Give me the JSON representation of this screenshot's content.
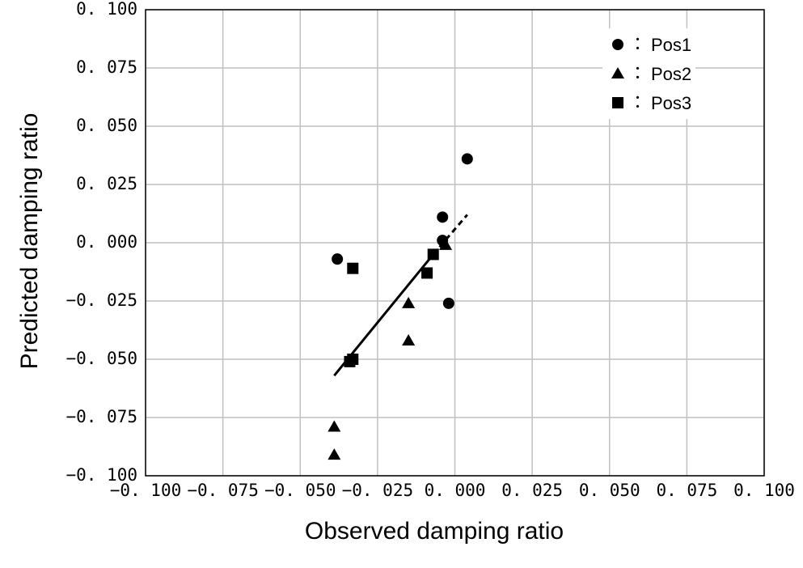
{
  "chart_data": {
    "type": "scatter",
    "x_label": "Observed damping ratio",
    "y_label": "Predicted damping ratio",
    "xlim": [
      -0.1,
      0.1
    ],
    "ylim": [
      -0.1,
      0.1
    ],
    "xticks": [
      {
        "value": -0.1,
        "label": "−0. 100"
      },
      {
        "value": -0.075,
        "label": "−0. 075"
      },
      {
        "value": -0.05,
        "label": "−0. 050"
      },
      {
        "value": -0.025,
        "label": "−0. 025"
      },
      {
        "value": 0,
        "label": "0. 000"
      },
      {
        "value": 0.025,
        "label": "0. 025"
      },
      {
        "value": 0.05,
        "label": "0. 050"
      },
      {
        "value": 0.075,
        "label": "0. 075"
      },
      {
        "value": 0.1,
        "label": "0. 100"
      }
    ],
    "yticks": [
      {
        "value": -0.1,
        "label": "−0. 100"
      },
      {
        "value": -0.075,
        "label": "−0. 075"
      },
      {
        "value": -0.05,
        "label": "−0. 050"
      },
      {
        "value": -0.025,
        "label": "−0. 025"
      },
      {
        "value": 0,
        "label": "0. 000"
      },
      {
        "value": 0.025,
        "label": "0. 025"
      },
      {
        "value": 0.05,
        "label": "0. 050"
      },
      {
        "value": 0.075,
        "label": "0. 075"
      },
      {
        "value": 0.1,
        "label": "0. 100"
      }
    ],
    "grid": true,
    "legend_position": "upper right",
    "legend_separator": "：",
    "series": [
      {
        "name": "Pos1",
        "color": "#000000",
        "marker": "circle",
        "x": [
          -0.038,
          0.004,
          -0.004,
          -0.004,
          -0.002
        ],
        "values": [
          -0.007,
          0.036,
          0.011,
          0.001,
          -0.026
        ]
      },
      {
        "name": "Pos2",
        "color": "#000000",
        "marker": "triangle",
        "x": [
          -0.003,
          -0.015,
          -0.015,
          -0.039,
          -0.039
        ],
        "values": [
          -0.001,
          -0.026,
          -0.042,
          -0.079,
          -0.091
        ]
      },
      {
        "name": "Pos3",
        "color": "#000000",
        "marker": "square",
        "x": [
          -0.033,
          -0.007,
          -0.009,
          -0.034,
          -0.033
        ],
        "values": [
          -0.011,
          -0.005,
          -0.013,
          -0.051,
          -0.05
        ]
      }
    ],
    "fit_line": {
      "x": [
        -0.039,
        -0.007
      ],
      "values": [
        -0.057,
        -0.005
      ],
      "dash": false
    },
    "fit_extension": {
      "x": [
        -0.007,
        0.004
      ],
      "values": [
        -0.005,
        0.012
      ],
      "dash": true
    }
  }
}
